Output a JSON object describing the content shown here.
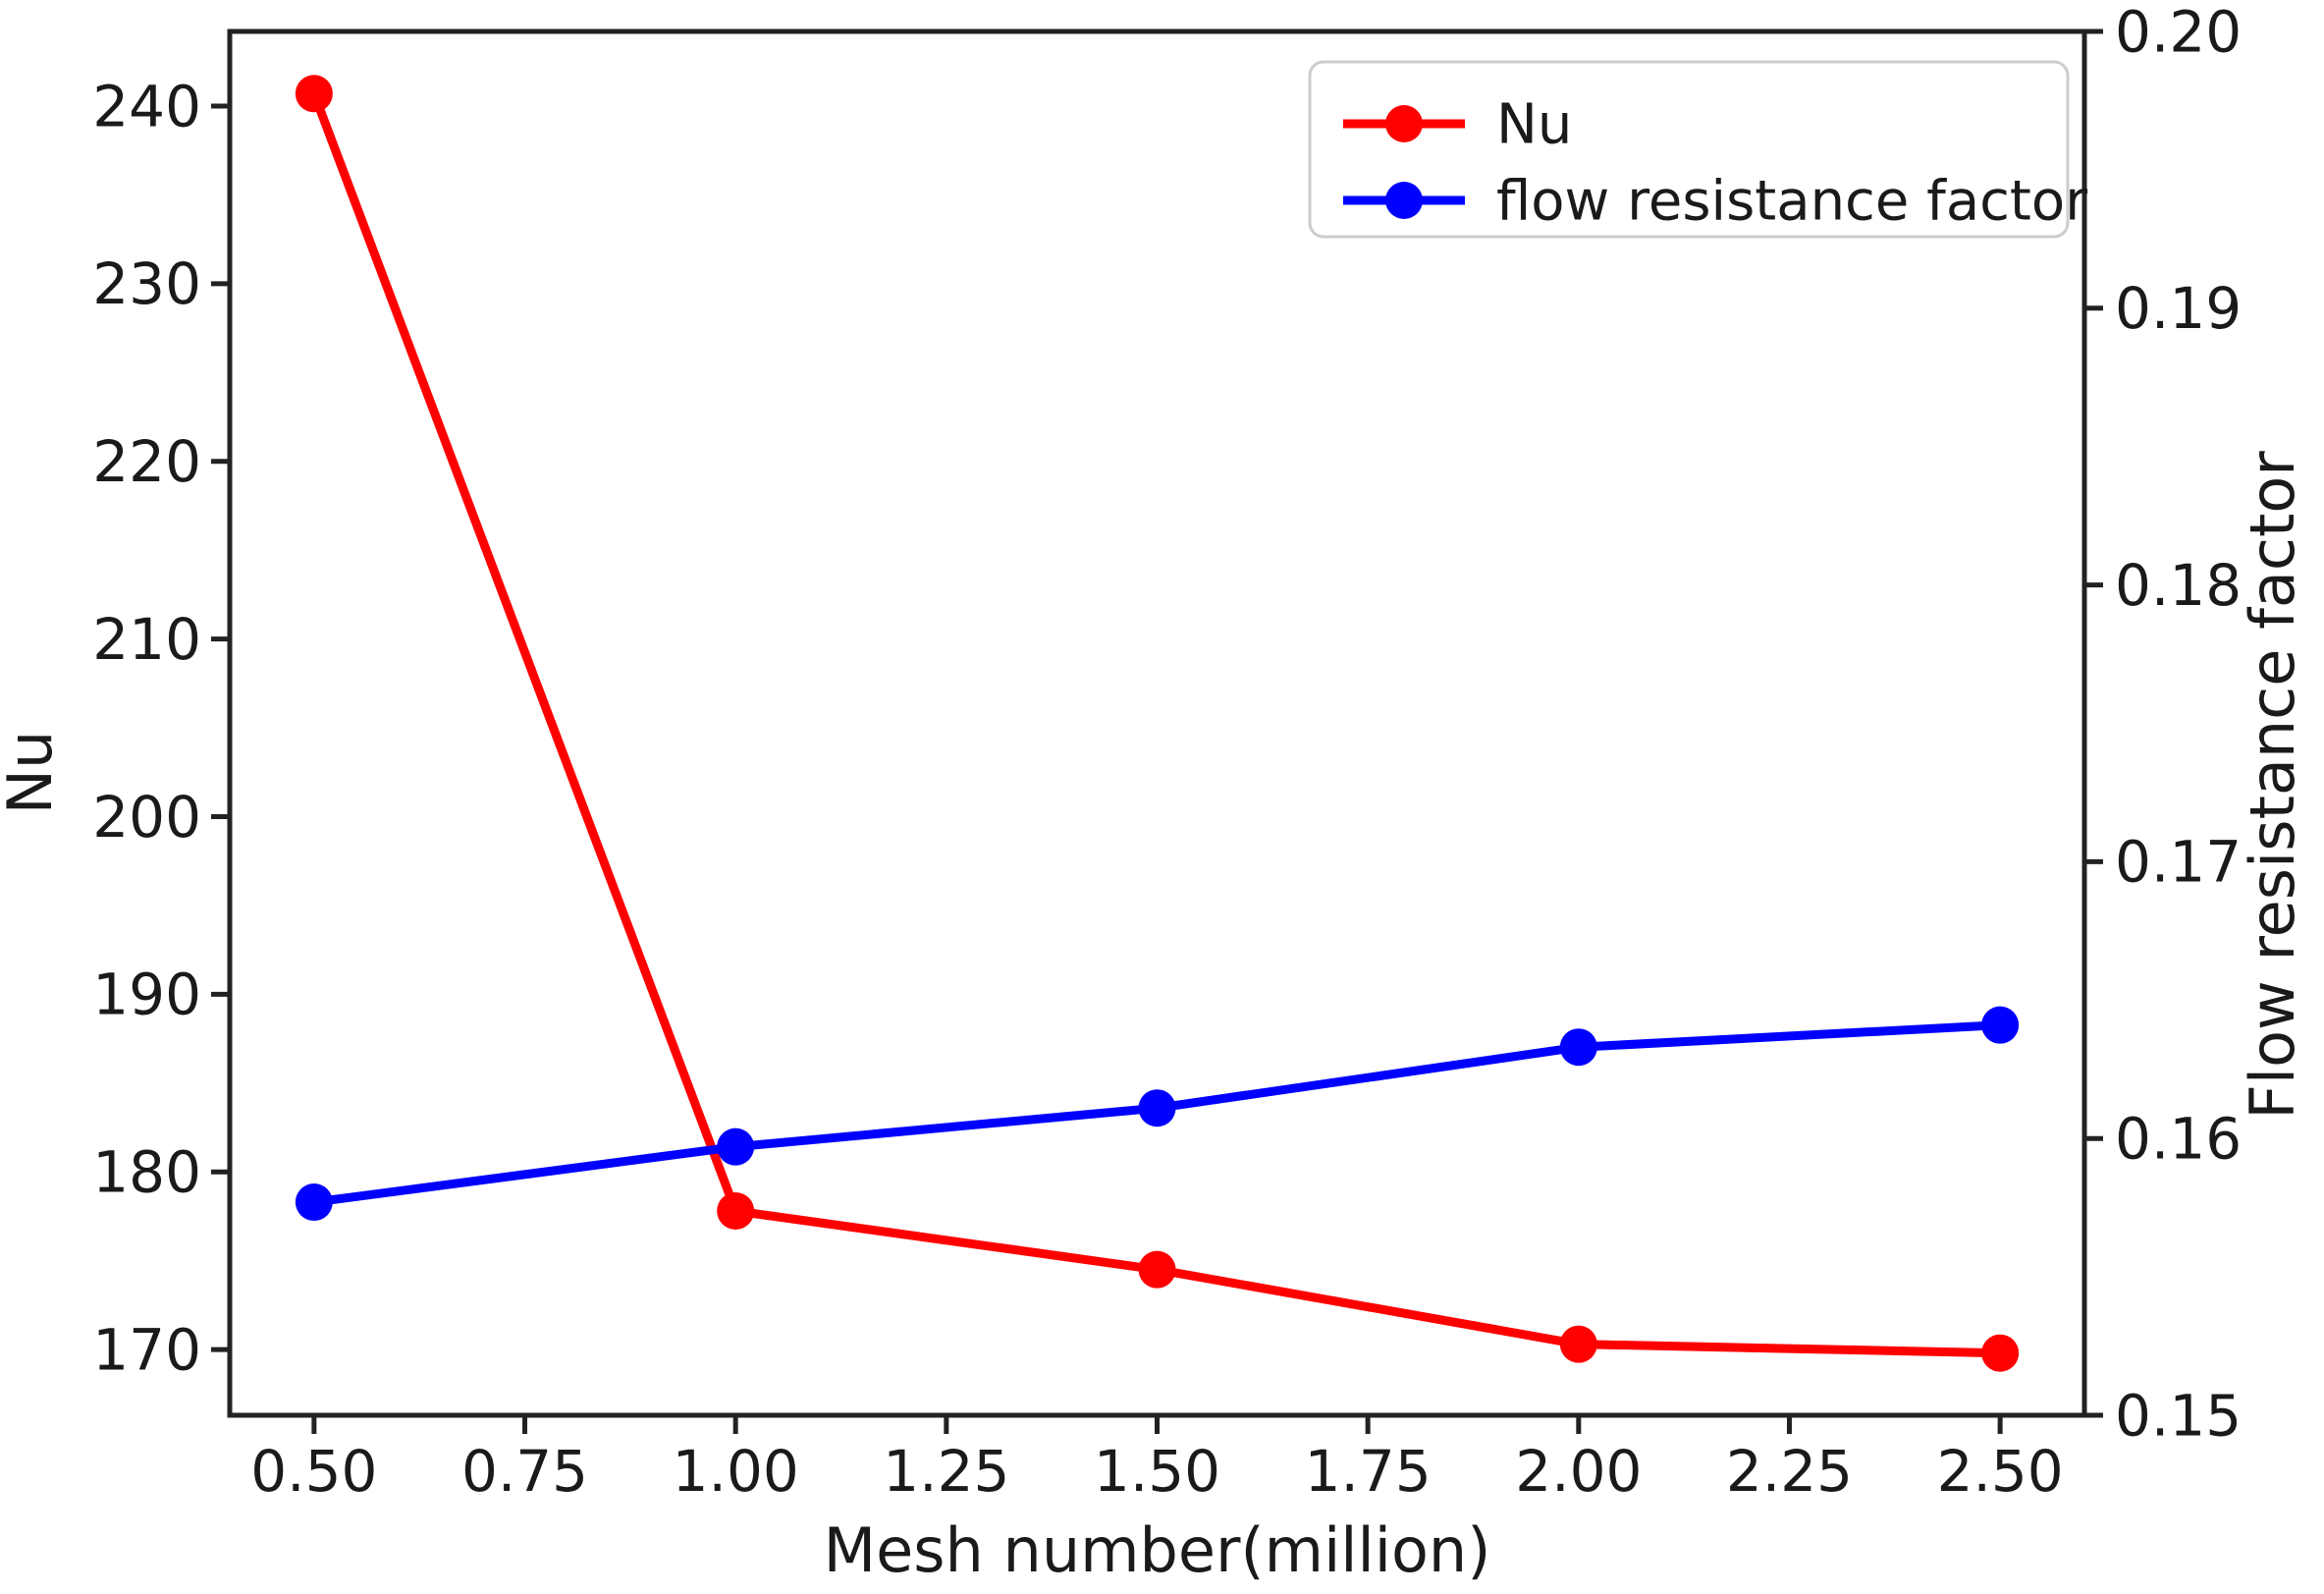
{
  "chart_data": {
    "type": "line",
    "title": "",
    "xlabel": "Mesh number(million)",
    "ylabel_left": "Nu",
    "ylabel_right": "Flow resistance factor",
    "x": [
      0.5,
      1.0,
      1.5,
      2.0,
      2.5
    ],
    "series": [
      {
        "name": "Nu",
        "axis": "left",
        "color": "#ff0000",
        "marker": "circle",
        "values": [
          240.7,
          177.8,
          174.5,
          170.3,
          169.8
        ]
      },
      {
        "name": "flow resistance factor",
        "axis": "right",
        "color": "#0000ff",
        "marker": "circle",
        "values": [
          0.1577,
          0.1597,
          0.1611,
          0.1633,
          0.1641
        ]
      }
    ],
    "xlim": [
      0.4,
      2.6
    ],
    "ylim_left": [
      166.3,
      244.2
    ],
    "ylim_right": [
      0.15,
      0.2
    ],
    "xticks": [
      "0.50",
      "0.75",
      "1.00",
      "1.25",
      "1.50",
      "1.75",
      "2.00",
      "2.25",
      "2.50"
    ],
    "yticks_left": [
      "170",
      "180",
      "190",
      "200",
      "210",
      "220",
      "230",
      "240"
    ],
    "yticks_right": [
      "0.15",
      "0.16",
      "0.17",
      "0.18",
      "0.19",
      "0.20"
    ],
    "legend": {
      "position": "upper right",
      "entries": [
        {
          "label": "Nu",
          "color": "#ff0000"
        },
        {
          "label": "flow resistance factor",
          "color": "#0000ff"
        }
      ]
    },
    "grid": false,
    "colors": {
      "axis": "#222222",
      "text": "#1a1a1a",
      "legend_border": "#cccccc",
      "background": "#ffffff"
    }
  }
}
